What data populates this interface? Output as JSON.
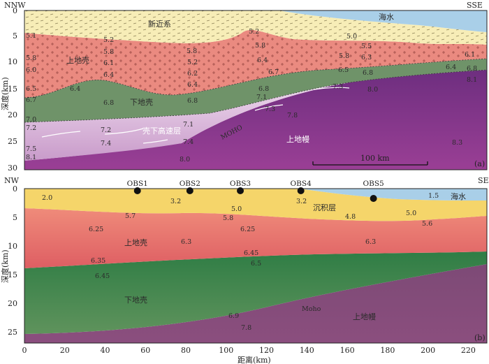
{
  "panel_a": {
    "corner_left": "NNW",
    "corner_right": "SSE",
    "panel_label": "(a)",
    "y_axis_label": "深度(km)",
    "y_ticks": [
      "0",
      "5",
      "10",
      "15",
      "20",
      "25",
      "30"
    ],
    "scale_bar": "100 km",
    "zones": {
      "sea": "海水",
      "neogene": "新近系",
      "upper_crust": "上地壳",
      "lower_crust": "下地壳",
      "high_velocity": "壳下高速层",
      "moho": "MOHO",
      "upper_mantle": "上地幔"
    },
    "velocities": [
      "5.1",
      "5.2",
      "5.2",
      "5.0",
      "5.8",
      "5.8",
      "5.2",
      "5.8",
      "5.5",
      "6.0",
      "6.1",
      "5.8",
      "6.4",
      "5.8",
      "6.3",
      "6.1",
      "6.4",
      "6.2",
      "6.7",
      "6.4",
      "6.8",
      "6.5",
      "6.4",
      "6.5",
      "6.8",
      "6.8",
      "6.7",
      "6.4",
      "7.3",
      "8.1",
      "6.8",
      "6.8",
      "8.0",
      "7.1",
      "7.0",
      "7.3",
      "7.1",
      "7.8",
      "7.2",
      "7.2",
      "7.4",
      "7.4",
      "7.5",
      "8.3",
      "8.1",
      "8.0"
    ],
    "colors": {
      "sea": "#a9cfe8",
      "neogene": "#f7edb7",
      "upper_crust": "#ea8a80",
      "lower_crust": "#6f9369",
      "high_velocity": "#e8cde8",
      "mantle": "#7b2e86"
    }
  },
  "panel_b": {
    "corner_left": "NW",
    "corner_right": "SE",
    "panel_label": "(b)",
    "y_axis_label": "深度(km)",
    "x_axis_label": "距离(km)",
    "y_ticks": [
      "0",
      "5",
      "10",
      "15",
      "20",
      "25"
    ],
    "x_ticks": [
      "0",
      "20",
      "40",
      "60",
      "80",
      "100",
      "120",
      "140",
      "160",
      "180",
      "200",
      "220"
    ],
    "obs_stations": [
      {
        "name": "OBS1",
        "distance_km": 56
      },
      {
        "name": "OBS2",
        "distance_km": 82
      },
      {
        "name": "OBS3",
        "distance_km": 107
      },
      {
        "name": "OBS4",
        "distance_km": 137
      },
      {
        "name": "OBS5",
        "distance_km": 173
      }
    ],
    "zones": {
      "sea": "海水",
      "sediment": "沉积层",
      "upper_crust": "上地壳",
      "lower_crust": "下地壳",
      "moho": "Moho",
      "upper_mantle": "上地幔"
    },
    "velocities": [
      "2.0",
      "3.2",
      "3.2",
      "1.5",
      "5.7",
      "5.0",
      "5.0",
      "5.8",
      "4.8",
      "5.6",
      "6.25",
      "6.25",
      "6.3",
      "6.3",
      "6.45",
      "6.35",
      "6.5",
      "6.45",
      "6.9",
      "7.8"
    ],
    "colors": {
      "sea": "#a9cfe8",
      "sediment": "#f5d56a",
      "upper_crust": "#e46f6a",
      "lower_crust": "#3f8a4e",
      "mantle": "#7a3b70"
    }
  }
}
